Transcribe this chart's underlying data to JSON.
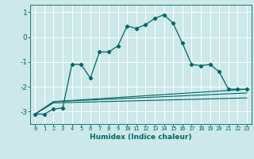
{
  "xlabel": "Humidex (Indice chaleur)",
  "bg_color": "#cce8e8",
  "grid_color": "#ffffff",
  "line_color": "#006666",
  "xlim": [
    -0.5,
    23.5
  ],
  "ylim": [
    -3.5,
    1.3
  ],
  "yticks": [
    -3,
    -2,
    -1,
    0,
    1
  ],
  "xticks": [
    0,
    1,
    2,
    3,
    4,
    5,
    6,
    7,
    8,
    9,
    10,
    11,
    12,
    13,
    14,
    15,
    16,
    17,
    18,
    19,
    20,
    21,
    22,
    23
  ],
  "series1_x": [
    0,
    1,
    2,
    3,
    4,
    5,
    6,
    7,
    8,
    9,
    10,
    11,
    12,
    13,
    14,
    15,
    16,
    17,
    18,
    19,
    20,
    21,
    22,
    23
  ],
  "series1_y": [
    -3.1,
    -3.1,
    -2.9,
    -2.85,
    -1.1,
    -1.1,
    -1.65,
    -0.6,
    -0.6,
    -0.35,
    0.45,
    0.35,
    0.5,
    0.75,
    0.9,
    0.55,
    -0.25,
    -1.1,
    -1.15,
    -1.1,
    -1.4,
    -2.1,
    -2.1,
    -2.1
  ],
  "line2_x": [
    0,
    2,
    23
  ],
  "line2_y": [
    -3.1,
    -2.6,
    -2.1
  ],
  "line3_x": [
    0,
    2,
    23
  ],
  "line3_y": [
    -3.1,
    -2.6,
    -2.25
  ],
  "line4_x": [
    0,
    2,
    23
  ],
  "line4_y": [
    -3.1,
    -2.65,
    -2.45
  ]
}
